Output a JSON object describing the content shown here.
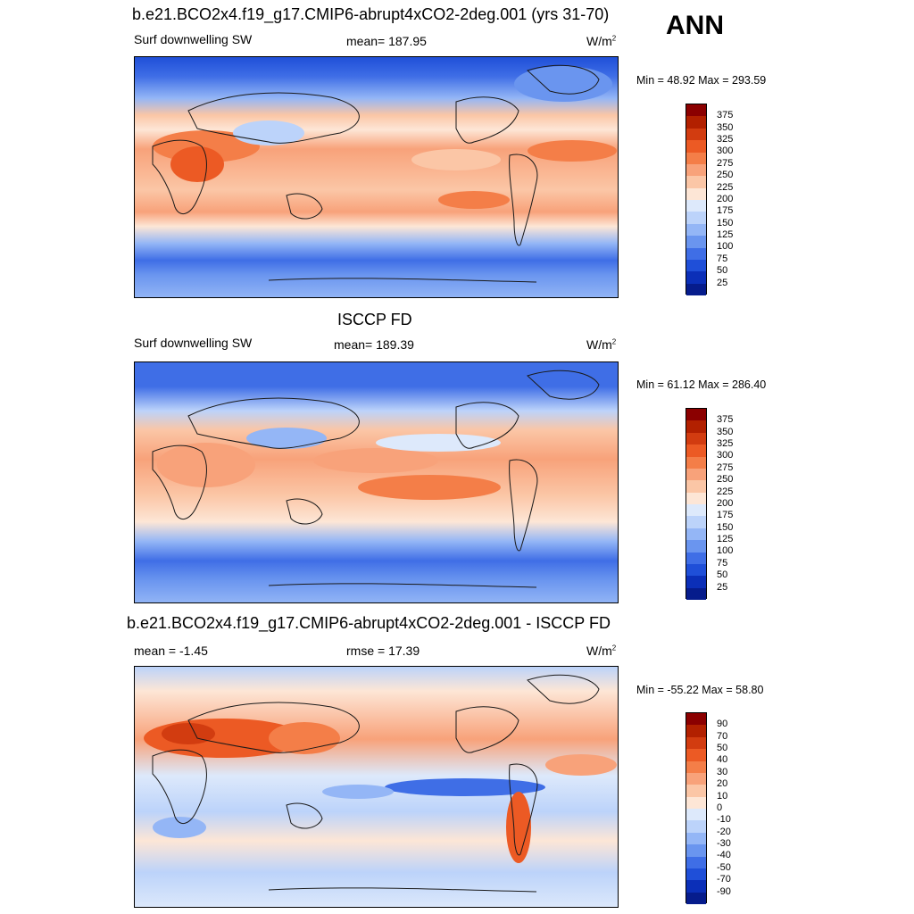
{
  "season": "ANN",
  "panels": [
    {
      "title": "b.e21.BCO2x4.f19_g17.CMIP6-abrupt4xCO2-2deg.001 (yrs 31-70)",
      "left_label": "Surf downwelling SW",
      "center_label": "mean= 187.95",
      "units": "W/m",
      "units_sup": "2",
      "minmax": "Min =  48.92 Max = 293.59",
      "colorbar_ticks": [
        "375",
        "350",
        "325",
        "300",
        "275",
        "250",
        "225",
        "200",
        "175",
        "150",
        "125",
        "100",
        "75",
        "50",
        "25"
      ]
    },
    {
      "title": "ISCCP FD",
      "left_label": "Surf downwelling SW",
      "center_label": "mean= 189.39",
      "units": "W/m",
      "units_sup": "2",
      "minmax": "Min =  61.12 Max = 286.40",
      "colorbar_ticks": [
        "375",
        "350",
        "325",
        "300",
        "275",
        "250",
        "225",
        "200",
        "175",
        "150",
        "125",
        "100",
        "75",
        "50",
        "25"
      ]
    },
    {
      "title": "b.e21.BCO2x4.f19_g17.CMIP6-abrupt4xCO2-2deg.001 - ISCCP FD",
      "left_label": "mean =  -1.45",
      "center_label": "rmse =  17.39",
      "units": "W/m",
      "units_sup": "2",
      "minmax": "Min = -55.22 Max =  58.80",
      "colorbar_ticks": [
        "90",
        "70",
        "50",
        "40",
        "30",
        "20",
        "10",
        "0",
        "-10",
        "-20",
        "-30",
        "-40",
        "-50",
        "-70",
        "-90"
      ]
    }
  ],
  "colors": {
    "palette": [
      "#8b0000",
      "#b22000",
      "#d23c10",
      "#ec5a24",
      "#f47e48",
      "#f8a27a",
      "#fbc6a6",
      "#fde6d6",
      "#dde9fb",
      "#bcd3fa",
      "#94b6f6",
      "#6a95ef",
      "#3f6ee6",
      "#1f4fd8",
      "#0b2fb8",
      "#061c8c"
    ],
    "land_line": "#1a1a1a"
  }
}
